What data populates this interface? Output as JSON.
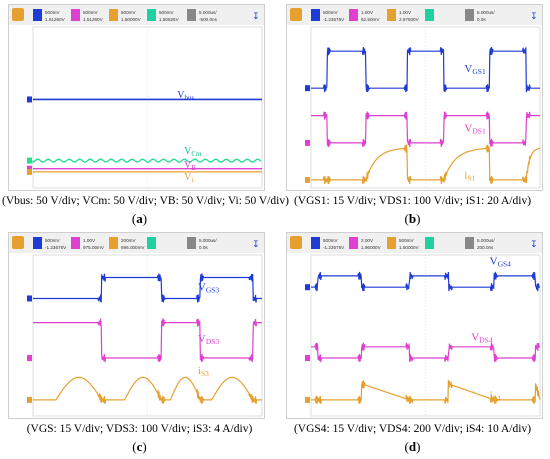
{
  "panels": [
    {
      "letter_open": "(",
      "letter": "a",
      "letter_close": ")",
      "caption": "(Vbus: 50 V/div; VCm: 50 V/div; VB: 50 V/div; Vi: 50 V/div)",
      "toolbar": {
        "channels": [
          {
            "color": "#1f3bd6",
            "scale": "500mV",
            "offset": "1.51260V"
          },
          {
            "color": "#e040d0",
            "scale": "500mV",
            "offset": "1.51260V"
          },
          {
            "color": "#e5a030",
            "scale": "500mV",
            "offset": "1.50000V"
          },
          {
            "color": "#20d0a0",
            "scale": "500mV",
            "offset": "1.50826V"
          }
        ],
        "timebase": "5.000us/",
        "delay": "-500.0ns"
      },
      "chart_data": {
        "type": "line",
        "series": [
          {
            "name": "Vbus",
            "color": "#1f3bd6",
            "level": 0.55
          },
          {
            "name": "VCm",
            "color": "#20e090",
            "level": 0.17
          },
          {
            "name": "VB",
            "color": "#e040d0",
            "level": 0.12
          },
          {
            "name": "Vi",
            "color": "#e5a030",
            "level": 0.1
          }
        ]
      },
      "labels": [
        {
          "main": "V",
          "sub": "bus",
          "color": "#1f3bd6"
        },
        {
          "main": "V",
          "sub": "Cm",
          "color": "#10c080"
        },
        {
          "main": "V",
          "sub": "B",
          "color": "#e040d0"
        },
        {
          "main": "V",
          "sub": "i",
          "color": "#e5a030"
        }
      ]
    },
    {
      "letter_open": "(",
      "letter": "b",
      "letter_close": ")",
      "caption": "(VGS1: 15 V/div; VDS1: 100 V/div; iS1: 20 A/div)",
      "toolbar": {
        "channels": [
          {
            "color": "#1f3bd6",
            "scale": "500mV",
            "offset": "-1.23676V"
          },
          {
            "color": "#e040d0",
            "scale": "1.00V",
            "offset": "62.50mV"
          },
          {
            "color": "#e5a030",
            "scale": "1.00V",
            "offset": "2.97500V"
          },
          {
            "color": "#20d0a0",
            "scale": "",
            "offset": ""
          }
        ],
        "timebase": "5.000us/",
        "delay": "0.0s"
      },
      "chart_data": {
        "type": "line",
        "duty": [
          [
            0.07,
            0.24
          ],
          [
            0.42,
            0.58
          ],
          [
            0.78,
            0.94
          ]
        ],
        "series": [
          {
            "name": "VGS1",
            "color": "#1f3bd6",
            "high": 0.85,
            "low": 0.62
          },
          {
            "name": "VDS1",
            "color": "#e040d0",
            "high": 0.45,
            "low": 0.28
          },
          {
            "name": "iS1",
            "color": "#e5a030",
            "peak": 0.25,
            "base": 0.05
          }
        ]
      },
      "labels": [
        {
          "main": "V",
          "sub": "GS1",
          "color": "#1f3bd6"
        },
        {
          "main": "V",
          "sub": "DS1",
          "color": "#e040d0"
        },
        {
          "main": "i",
          "sub": "S1",
          "color": "#e5a030"
        }
      ]
    },
    {
      "letter_open": "(",
      "letter": "c",
      "letter_close": ")",
      "caption": "(VGS: 15 V/div; VDS3: 100 V/div; iS3: 4 A/div)",
      "toolbar": {
        "channels": [
          {
            "color": "#1f3bd6",
            "scale": "500mV",
            "offset": "-1.23676V"
          },
          {
            "color": "#e040d0",
            "scale": "1.00V",
            "offset": "975.00mV"
          },
          {
            "color": "#e5a030",
            "scale": "200mV",
            "offset": "696.000mV"
          },
          {
            "color": "#20d0a0",
            "scale": "",
            "offset": ""
          }
        ],
        "timebase": "5.000us/",
        "delay": "0.0s"
      },
      "chart_data": {
        "type": "line",
        "duty": [
          [
            0.3,
            0.56
          ],
          [
            0.73,
            0.96
          ]
        ],
        "series": [
          {
            "name": "VGS3",
            "color": "#1f3bd6",
            "high": 0.86,
            "low": 0.73
          },
          {
            "name": "VDS3",
            "color": "#e040d0",
            "high": 0.58,
            "low": 0.36
          },
          {
            "name": "iS3",
            "color": "#e5a030",
            "peak": 0.24,
            "base": 0.1
          }
        ]
      },
      "labels": [
        {
          "main": "V",
          "sub": "GS3",
          "color": "#1f3bd6"
        },
        {
          "main": "V",
          "sub": "DS3",
          "color": "#e040d0"
        },
        {
          "main": "i",
          "sub": "S3",
          "color": "#e5a030"
        }
      ]
    },
    {
      "letter_open": "(",
      "letter": "d",
      "letter_close": ")",
      "caption": "(VGS4: 15 V/div; VDS4: 200 V/div; iS4: 10 A/div)",
      "toolbar": {
        "channels": [
          {
            "color": "#1f3bd6",
            "scale": "500mV",
            "offset": "-1.23676V"
          },
          {
            "color": "#e040d0",
            "scale": "2.00V",
            "offset": "1.96000V"
          },
          {
            "color": "#e5a030",
            "scale": "500mV",
            "offset": "1.50000V"
          },
          {
            "color": "#20d0a0",
            "scale": "",
            "offset": ""
          }
        ],
        "timebase": "5.000us/",
        "delay": "200.0ns"
      },
      "chart_data": {
        "type": "line",
        "duty": [
          [
            0.03,
            0.22
          ],
          [
            0.43,
            0.6
          ],
          [
            0.8,
            0.98
          ]
        ],
        "series": [
          {
            "name": "VGS4",
            "color": "#1f3bd6",
            "high": 0.87,
            "low": 0.8
          },
          {
            "name": "VDS4",
            "color": "#e040d0",
            "high": 0.43,
            "low": 0.36
          },
          {
            "name": "iS4",
            "color": "#e5a030",
            "peak": 0.2,
            "base": 0.1
          }
        ]
      },
      "labels": [
        {
          "main": "V",
          "sub": "GS4",
          "color": "#1f3bd6"
        },
        {
          "main": "V",
          "sub": "DS4",
          "color": "#e040d0"
        },
        {
          "main": "i",
          "sub": "S4",
          "color": "#e5a030"
        }
      ]
    }
  ]
}
